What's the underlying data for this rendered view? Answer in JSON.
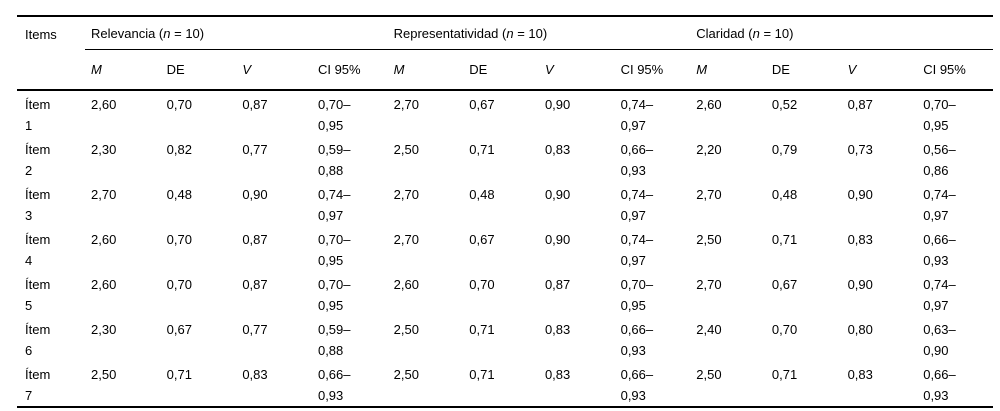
{
  "table": {
    "items_header": "Items",
    "groups": [
      {
        "parts": [
          "Relevancia (",
          "n",
          " = 10)"
        ]
      },
      {
        "parts": [
          "Representatividad (",
          "n",
          " = 10)"
        ]
      },
      {
        "parts": [
          "Claridad (",
          "n",
          " = 10)"
        ]
      }
    ],
    "subheaders": [
      {
        "label": "M",
        "italic": true
      },
      {
        "label": "DE",
        "italic": false
      },
      {
        "label": "V",
        "italic": true
      },
      {
        "label": "CI 95%",
        "italic": false
      }
    ],
    "rows": [
      {
        "item": "Ítem\n1",
        "cells": [
          "2,60",
          "0,70",
          "0,87",
          "0,70–\n0,95",
          "2,70",
          "0,67",
          "0,90",
          "0,74–\n0,97",
          "2,60",
          "0,52",
          "0,87",
          "0,70–\n0,95"
        ]
      },
      {
        "item": "Ítem\n2",
        "cells": [
          "2,30",
          "0,82",
          "0,77",
          "0,59–\n0,88",
          "2,50",
          "0,71",
          "0,83",
          "0,66–\n0,93",
          "2,20",
          "0,79",
          "0,73",
          "0,56–\n0,86"
        ]
      },
      {
        "item": "Ítem\n3",
        "cells": [
          "2,70",
          "0,48",
          "0,90",
          "0,74–\n0,97",
          "2,70",
          "0,48",
          "0,90",
          "0,74–\n0,97",
          "2,70",
          "0,48",
          "0,90",
          "0,74–\n0,97"
        ]
      },
      {
        "item": "Ítem\n4",
        "cells": [
          "2,60",
          "0,70",
          "0,87",
          "0,70–\n0,95",
          "2,70",
          "0,67",
          "0,90",
          "0,74–\n0,97",
          "2,50",
          "0,71",
          "0,83",
          "0,66–\n0,93"
        ]
      },
      {
        "item": "Ítem\n5",
        "cells": [
          "2,60",
          "0,70",
          "0,87",
          "0,70–\n0,95",
          "2,60",
          "0,70",
          "0,87",
          "0,70–\n0,95",
          "2,70",
          "0,67",
          "0,90",
          "0,74–\n0,97"
        ]
      },
      {
        "item": "Ítem\n6",
        "cells": [
          "2,30",
          "0,67",
          "0,77",
          "0,59–\n0,88",
          "2,50",
          "0,71",
          "0,83",
          "0,66–\n0,93",
          "2,40",
          "0,70",
          "0,80",
          "0,63–\n0,90"
        ]
      },
      {
        "item": "Ítem\n7",
        "cells": [
          "2,50",
          "0,71",
          "0,83",
          "0,66–\n0,93",
          "2,50",
          "0,71",
          "0,83",
          "0,66–\n0,93",
          "2,50",
          "0,71",
          "0,83",
          "0,66–\n0,93"
        ]
      }
    ]
  }
}
